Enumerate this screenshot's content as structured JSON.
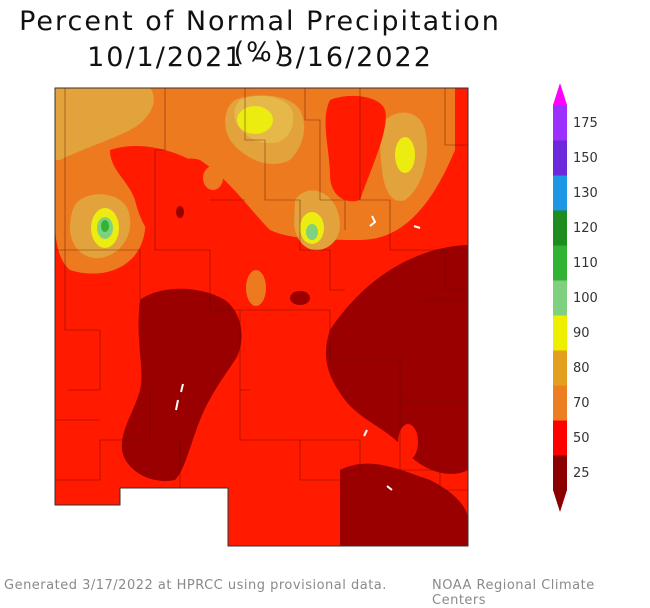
{
  "title": {
    "line1": "Percent of Normal Precipitation (%)",
    "line2": "10/1/2021 - 3/16/2022"
  },
  "legend": {
    "bins": [
      {
        "label": "25",
        "color": "#8b0000"
      },
      {
        "label": "50",
        "color": "#ff0000"
      },
      {
        "label": "70",
        "color": "#ee7e22"
      },
      {
        "label": "80",
        "color": "#e3a01e"
      },
      {
        "label": "90",
        "color": "#eeee00"
      },
      {
        "label": "100",
        "color": "#7fd07f"
      },
      {
        "label": "110",
        "color": "#32b432"
      },
      {
        "label": "120",
        "color": "#1e8c1e"
      },
      {
        "label": "130",
        "color": "#1e96e6"
      },
      {
        "label": "150",
        "color": "#6e28dc"
      },
      {
        "label": "175",
        "color": "#9b30ff"
      }
    ],
    "top_color": "#ff00ff"
  },
  "footer": {
    "left": "Generated 3/17/2022 at HPRCC using provisional data.",
    "right": "NOAA Regional Climate Centers"
  }
}
